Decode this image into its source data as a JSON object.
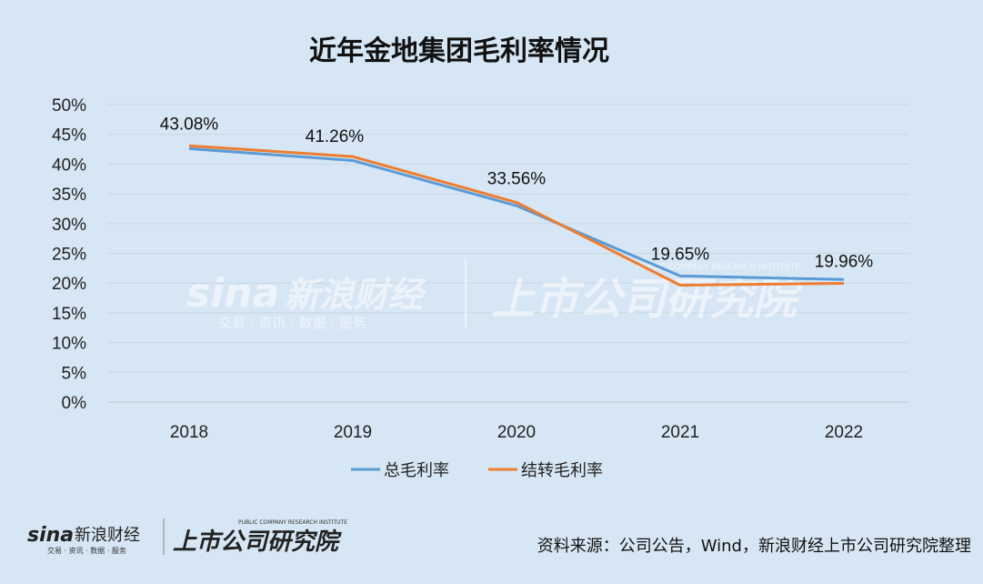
{
  "chart_data": {
    "type": "line",
    "title": "近年金地集团毛利率情况",
    "categories": [
      "2018",
      "2019",
      "2020",
      "2021",
      "2022"
    ],
    "ylim": [
      0,
      50
    ],
    "yticks": [
      0,
      5,
      10,
      15,
      20,
      25,
      30,
      35,
      40,
      45,
      50
    ],
    "ytick_labels": [
      "0%",
      "5%",
      "10%",
      "15%",
      "20%",
      "25%",
      "30%",
      "35%",
      "40%",
      "45%",
      "50%"
    ],
    "grid": true,
    "legend_position": "bottom",
    "series": [
      {
        "name": "总毛利率",
        "color": "#5b9bd5",
        "values": [
          42.6,
          40.6,
          33.0,
          21.2,
          20.6
        ]
      },
      {
        "name": "结转毛利率",
        "color": "#ed7d31",
        "values": [
          43.08,
          41.26,
          33.56,
          19.65,
          19.96
        ]
      }
    ],
    "data_labels": [
      "43.08%",
      "41.26%",
      "33.56%",
      "19.65%",
      "19.96%"
    ]
  },
  "source_text": "资料来源：公司公告，Wind，新浪财经上市公司研究院整理",
  "watermark": {
    "brand": "sina",
    "brand_cn": "新浪财经",
    "brand_sub": "交易 · 资讯 · 数据 · 服务",
    "institute": "上市公司研究院",
    "institute_en": "PUBLIC COMPANY RESEARCH INSTITUTE"
  }
}
